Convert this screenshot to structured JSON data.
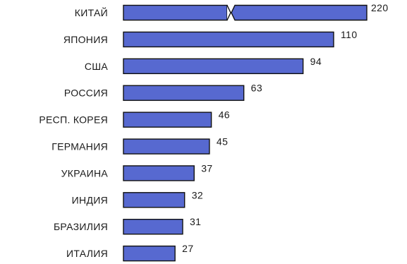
{
  "chart_data": {
    "type": "bar",
    "orientation": "horizontal",
    "categories": [
      "КИТАЙ",
      "ЯПОНИЯ",
      "США",
      "РОССИЯ",
      "РЕСП. КОРЕЯ",
      "ГЕРМАНИЯ",
      "УКРАИНА",
      "ИНДИЯ",
      "БРАЗИЛИЯ",
      "ИТАЛИЯ"
    ],
    "values": [
      220,
      110,
      94,
      63,
      46,
      45,
      37,
      32,
      31,
      27
    ],
    "value_labels": [
      "220",
      "110",
      "94",
      "63",
      "46",
      "45",
      "37",
      "32",
      "31",
      "27"
    ],
    "broken_bars": [
      "КИТАЙ"
    ],
    "title": "",
    "xlabel": "",
    "ylabel": "",
    "grid": false,
    "legend": "none",
    "bar_color": "#5769d0",
    "bar_edge_color": "#111111"
  }
}
